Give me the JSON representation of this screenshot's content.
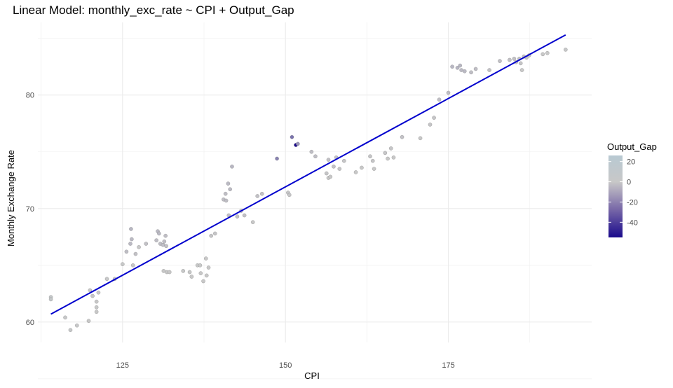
{
  "chart_data": {
    "type": "scatter",
    "title": "Linear Model: monthly_exc_rate ~ CPI + Output_Gap",
    "xlabel": "CPI",
    "ylabel": "Monthly Exchange Rate",
    "xlim": [
      112,
      197
    ],
    "ylim": [
      58.2,
      86.4
    ],
    "x_ticks": [
      125,
      150,
      175
    ],
    "y_ticks": [
      60,
      70,
      80
    ],
    "grid": true,
    "legend": {
      "title": "Output_Gap",
      "position": "right",
      "labels": [
        "20",
        "0",
        "-20",
        "-40"
      ],
      "values": [
        20,
        0,
        -20,
        -40
      ],
      "range": [
        -55,
        26
      ],
      "color_low": "#1a0a8c",
      "color_mid": "#c8c8c8",
      "color_high": "#b8c9d2"
    },
    "fit_line": {
      "x": [
        114,
        193
      ],
      "y": [
        60.7,
        85.3
      ],
      "color": "#0000cd"
    },
    "points": [
      {
        "x": 114.0,
        "y": 62.2,
        "gap": 5
      },
      {
        "x": 114.0,
        "y": 62.0,
        "gap": 5
      },
      {
        "x": 116.2,
        "y": 60.4,
        "gap": 2
      },
      {
        "x": 117.0,
        "y": 59.3,
        "gap": 3
      },
      {
        "x": 118.0,
        "y": 59.7,
        "gap": 2
      },
      {
        "x": 119.8,
        "y": 60.1,
        "gap": 0
      },
      {
        "x": 120.0,
        "y": 62.8,
        "gap": 0
      },
      {
        "x": 120.4,
        "y": 62.3,
        "gap": -1
      },
      {
        "x": 121.0,
        "y": 61.8,
        "gap": 0
      },
      {
        "x": 121.0,
        "y": 61.3,
        "gap": 1
      },
      {
        "x": 121.0,
        "y": 60.9,
        "gap": 0
      },
      {
        "x": 121.3,
        "y": 62.6,
        "gap": 0
      },
      {
        "x": 122.6,
        "y": 63.8,
        "gap": 2
      },
      {
        "x": 123.8,
        "y": 63.8,
        "gap": -2
      },
      {
        "x": 125.0,
        "y": 65.1,
        "gap": 1
      },
      {
        "x": 125.6,
        "y": 66.2,
        "gap": -3
      },
      {
        "x": 126.2,
        "y": 66.9,
        "gap": -4
      },
      {
        "x": 126.4,
        "y": 67.3,
        "gap": -4
      },
      {
        "x": 126.3,
        "y": 68.2,
        "gap": -5
      },
      {
        "x": 126.6,
        "y": 65.0,
        "gap": -1
      },
      {
        "x": 127.0,
        "y": 66.0,
        "gap": -2
      },
      {
        "x": 127.5,
        "y": 66.6,
        "gap": 0
      },
      {
        "x": 128.6,
        "y": 66.9,
        "gap": -2
      },
      {
        "x": 130.2,
        "y": 67.2,
        "gap": -3
      },
      {
        "x": 130.4,
        "y": 68.0,
        "gap": -4
      },
      {
        "x": 130.6,
        "y": 67.8,
        "gap": -4
      },
      {
        "x": 130.8,
        "y": 66.9,
        "gap": -3
      },
      {
        "x": 131.2,
        "y": 66.8,
        "gap": -3
      },
      {
        "x": 131.4,
        "y": 67.1,
        "gap": -3
      },
      {
        "x": 131.6,
        "y": 67.6,
        "gap": -3
      },
      {
        "x": 131.7,
        "y": 66.7,
        "gap": -2
      },
      {
        "x": 131.3,
        "y": 64.5,
        "gap": 0
      },
      {
        "x": 131.8,
        "y": 64.4,
        "gap": 0
      },
      {
        "x": 132.2,
        "y": 64.4,
        "gap": 0
      },
      {
        "x": 134.3,
        "y": 64.5,
        "gap": 1
      },
      {
        "x": 135.3,
        "y": 64.4,
        "gap": 1
      },
      {
        "x": 135.6,
        "y": 64.0,
        "gap": 0
      },
      {
        "x": 136.5,
        "y": 65.0,
        "gap": 1
      },
      {
        "x": 136.9,
        "y": 65.0,
        "gap": 1
      },
      {
        "x": 137.0,
        "y": 64.3,
        "gap": 0
      },
      {
        "x": 137.4,
        "y": 63.6,
        "gap": 0
      },
      {
        "x": 137.8,
        "y": 65.6,
        "gap": 0
      },
      {
        "x": 138.2,
        "y": 64.8,
        "gap": 0
      },
      {
        "x": 137.9,
        "y": 64.1,
        "gap": 0
      },
      {
        "x": 138.6,
        "y": 67.6,
        "gap": -1
      },
      {
        "x": 139.2,
        "y": 67.8,
        "gap": -1
      },
      {
        "x": 140.5,
        "y": 70.8,
        "gap": -3
      },
      {
        "x": 140.8,
        "y": 71.3,
        "gap": -3
      },
      {
        "x": 140.9,
        "y": 70.7,
        "gap": -3
      },
      {
        "x": 141.2,
        "y": 72.2,
        "gap": -4
      },
      {
        "x": 141.5,
        "y": 71.7,
        "gap": -4
      },
      {
        "x": 141.8,
        "y": 73.7,
        "gap": -5
      },
      {
        "x": 141.3,
        "y": 69.4,
        "gap": -2
      },
      {
        "x": 142.6,
        "y": 69.3,
        "gap": -2
      },
      {
        "x": 143.2,
        "y": 69.8,
        "gap": -2
      },
      {
        "x": 143.7,
        "y": 69.4,
        "gap": -2
      },
      {
        "x": 145.0,
        "y": 68.8,
        "gap": 0
      },
      {
        "x": 145.7,
        "y": 71.1,
        "gap": -2
      },
      {
        "x": 146.4,
        "y": 71.3,
        "gap": -2
      },
      {
        "x": 148.7,
        "y": 74.4,
        "gap": -20
      },
      {
        "x": 150.4,
        "y": 71.4,
        "gap": -1
      },
      {
        "x": 150.6,
        "y": 71.2,
        "gap": -1
      },
      {
        "x": 151.0,
        "y": 76.3,
        "gap": -25
      },
      {
        "x": 151.6,
        "y": 75.6,
        "gap": -55
      },
      {
        "x": 151.9,
        "y": 75.7,
        "gap": -15
      },
      {
        "x": 154.0,
        "y": 75.0,
        "gap": -3
      },
      {
        "x": 154.6,
        "y": 74.6,
        "gap": -3
      },
      {
        "x": 156.3,
        "y": 73.1,
        "gap": -1
      },
      {
        "x": 156.6,
        "y": 72.7,
        "gap": 0
      },
      {
        "x": 156.9,
        "y": 72.8,
        "gap": 0
      },
      {
        "x": 156.6,
        "y": 74.3,
        "gap": -2
      },
      {
        "x": 157.4,
        "y": 73.7,
        "gap": -2
      },
      {
        "x": 157.8,
        "y": 74.5,
        "gap": -2
      },
      {
        "x": 158.3,
        "y": 73.5,
        "gap": -1
      },
      {
        "x": 159.0,
        "y": 74.2,
        "gap": -1
      },
      {
        "x": 160.8,
        "y": 73.2,
        "gap": 0
      },
      {
        "x": 161.7,
        "y": 73.6,
        "gap": 0
      },
      {
        "x": 163.0,
        "y": 74.6,
        "gap": -1
      },
      {
        "x": 163.4,
        "y": 74.2,
        "gap": -1
      },
      {
        "x": 163.6,
        "y": 73.5,
        "gap": 0
      },
      {
        "x": 165.3,
        "y": 74.9,
        "gap": -1
      },
      {
        "x": 165.7,
        "y": 74.4,
        "gap": 0
      },
      {
        "x": 166.2,
        "y": 75.3,
        "gap": -1
      },
      {
        "x": 166.6,
        "y": 74.5,
        "gap": 0
      },
      {
        "x": 167.9,
        "y": 76.3,
        "gap": -2
      },
      {
        "x": 170.7,
        "y": 76.2,
        "gap": 0
      },
      {
        "x": 172.2,
        "y": 77.4,
        "gap": -1
      },
      {
        "x": 172.8,
        "y": 78.0,
        "gap": -1
      },
      {
        "x": 173.6,
        "y": 79.6,
        "gap": -3
      },
      {
        "x": 175.0,
        "y": 80.2,
        "gap": -3
      },
      {
        "x": 175.6,
        "y": 82.5,
        "gap": -5
      },
      {
        "x": 176.4,
        "y": 82.4,
        "gap": -5
      },
      {
        "x": 176.8,
        "y": 82.6,
        "gap": -5
      },
      {
        "x": 177.0,
        "y": 82.2,
        "gap": -4
      },
      {
        "x": 177.5,
        "y": 82.1,
        "gap": -4
      },
      {
        "x": 178.5,
        "y": 82.0,
        "gap": -3
      },
      {
        "x": 179.2,
        "y": 82.3,
        "gap": -3
      },
      {
        "x": 181.3,
        "y": 82.2,
        "gap": -2
      },
      {
        "x": 182.9,
        "y": 83.0,
        "gap": -2
      },
      {
        "x": 184.4,
        "y": 83.1,
        "gap": -2
      },
      {
        "x": 185.1,
        "y": 83.2,
        "gap": -2
      },
      {
        "x": 185.4,
        "y": 82.9,
        "gap": -1
      },
      {
        "x": 185.9,
        "y": 83.2,
        "gap": -2
      },
      {
        "x": 186.1,
        "y": 82.8,
        "gap": -1
      },
      {
        "x": 186.3,
        "y": 82.2,
        "gap": 0
      },
      {
        "x": 186.6,
        "y": 83.4,
        "gap": -2
      },
      {
        "x": 187.0,
        "y": 83.3,
        "gap": -1
      },
      {
        "x": 187.4,
        "y": 83.5,
        "gap": -1
      },
      {
        "x": 189.5,
        "y": 83.6,
        "gap": 0
      },
      {
        "x": 190.2,
        "y": 83.7,
        "gap": 0
      },
      {
        "x": 193.0,
        "y": 84.0,
        "gap": 2
      }
    ]
  }
}
